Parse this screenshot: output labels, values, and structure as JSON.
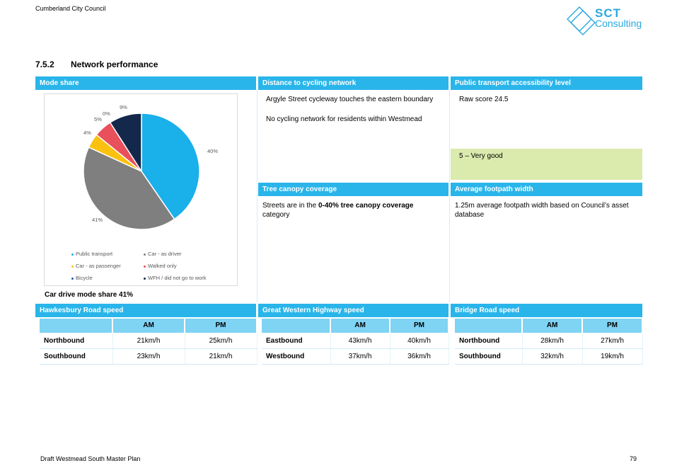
{
  "header": {
    "council": "Cumberland City Council",
    "logo_sct": "SCT",
    "logo_consulting": "Consulting"
  },
  "section": {
    "number": "7.5.2",
    "title": "Network performance"
  },
  "panels": {
    "mode_share": {
      "title": "Mode share",
      "summary": "Car drive mode share 41%"
    },
    "cycling": {
      "title": "Distance to cycling network",
      "line1": "Argyle Street cycleway touches the eastern boundary",
      "line2": "No cycling network for residents within Westmead"
    },
    "pt_access": {
      "title": "Public transport accessibility level",
      "score": "Raw score 24.5",
      "rating": "5 – Very good"
    },
    "tree": {
      "title": "Tree canopy coverage",
      "text_pre": "Streets are in the ",
      "text_bold": "0-40% tree canopy coverage",
      "text_post": " category"
    },
    "footpath": {
      "title": "Average footpath width",
      "text": "1.25m average footpath width based on Council’s asset database"
    }
  },
  "chart_data": {
    "type": "pie",
    "categories": [
      "Public transport",
      "Car - as driver",
      "Car - as passenger",
      "Walked only",
      "Bicycle",
      "WFH / did not go to work"
    ],
    "values": [
      40,
      41,
      4,
      5,
      0,
      9
    ],
    "labels": [
      "40%",
      "41%",
      "4%",
      "5%",
      "0%",
      "9%"
    ],
    "colors": [
      "#1ab0ea",
      "#7f7f7f",
      "#fbc110",
      "#e8505b",
      "#1f5fa8",
      "#13284b"
    ],
    "legend_position": "bottom"
  },
  "speed_tables": [
    {
      "title": "Hawkesbury Road speed",
      "columns": [
        "",
        "AM",
        "PM"
      ],
      "rows": [
        [
          "Northbound",
          "21km/h",
          "25km/h"
        ],
        [
          "Southbound",
          "23km/h",
          "21km/h"
        ]
      ]
    },
    {
      "title": "Great Western Highway speed",
      "columns": [
        "",
        "AM",
        "PM"
      ],
      "rows": [
        [
          "Eastbound",
          "43km/h",
          "40km/h"
        ],
        [
          "Westbound",
          "37km/h",
          "36km/h"
        ]
      ]
    },
    {
      "title": "Bridge Road speed",
      "columns": [
        "",
        "AM",
        "PM"
      ],
      "rows": [
        [
          "Northbound",
          "28km/h",
          "27km/h"
        ],
        [
          "Southbound",
          "32km/h",
          "19km/h"
        ]
      ]
    }
  ],
  "footer": {
    "document": "Draft Westmead South Master Plan",
    "page": "79"
  }
}
